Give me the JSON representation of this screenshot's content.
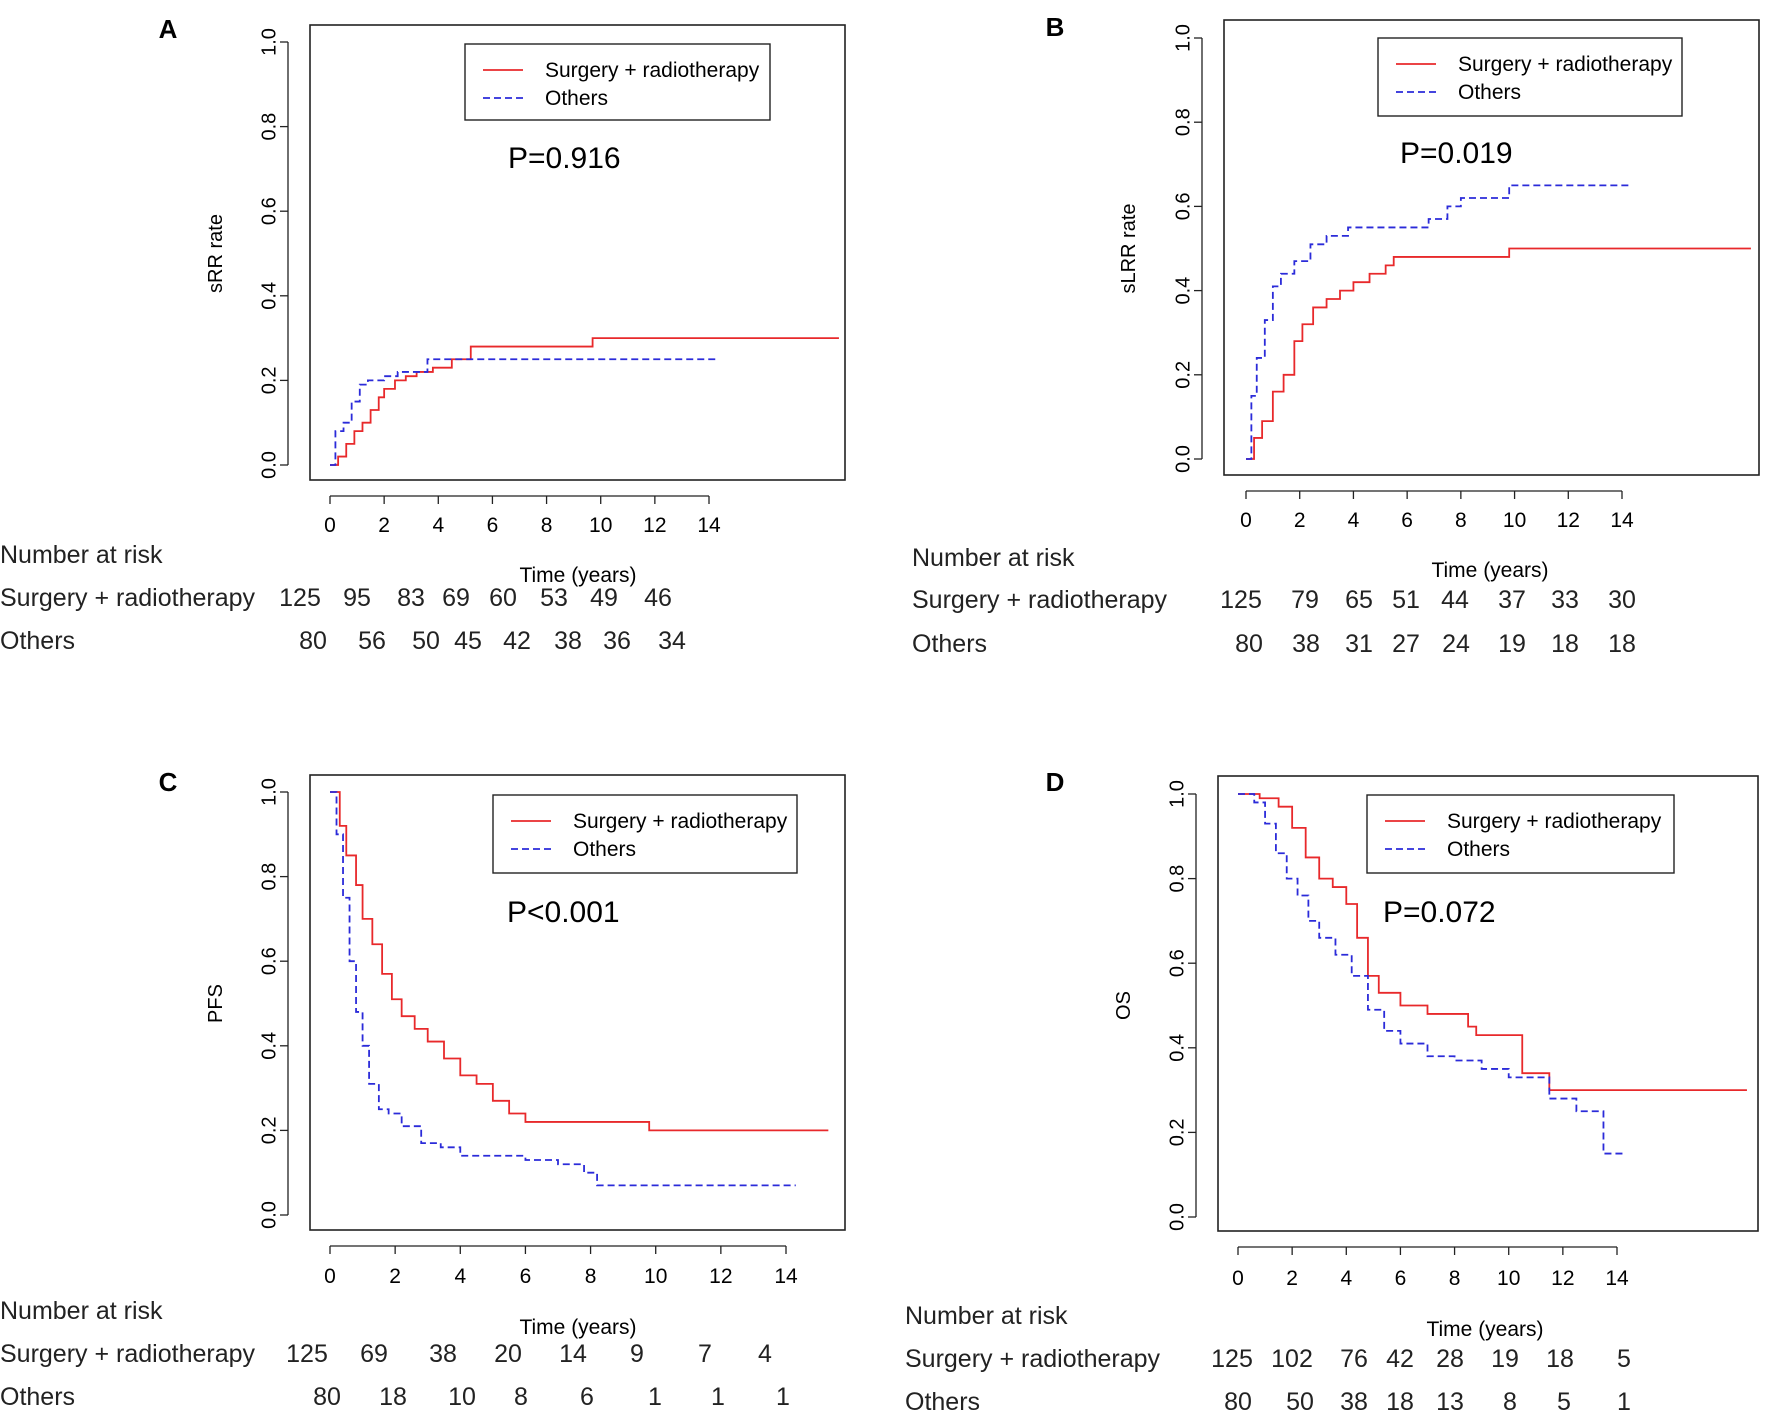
{
  "series_names": {
    "treated": "Surgery + radiotherapy",
    "others": "Others"
  },
  "colors": {
    "treated": "#e8292b",
    "others": "#2b2bd9",
    "axis": "#222222",
    "frame": "#222222"
  },
  "risk_table_title": "Number at risk",
  "chart_data": [
    {
      "panel": "A",
      "type": "line",
      "ylabel": "sRR rate",
      "xlabel": "Time (years)",
      "pvalue": "P=0.916",
      "ylim": [
        0,
        1
      ],
      "xlim": [
        0,
        14
      ],
      "yticks": [
        "0.0",
        "0.2",
        "0.4",
        "0.6",
        "0.8",
        "1.0"
      ],
      "xticks": [
        "0",
        "2",
        "4",
        "6",
        "8",
        "10",
        "12",
        "14"
      ],
      "legend_position": "top-right",
      "series": [
        {
          "name": "Surgery + radiotherapy",
          "style": "solid",
          "x": [
            0,
            0.3,
            0.6,
            0.9,
            1.2,
            1.5,
            1.8,
            2.0,
            2.4,
            2.8,
            3.2,
            3.8,
            4.5,
            5.2,
            6.5,
            9.7,
            12,
            14,
            18.8
          ],
          "y": [
            0,
            0.02,
            0.05,
            0.08,
            0.1,
            0.13,
            0.16,
            0.18,
            0.2,
            0.21,
            0.22,
            0.23,
            0.25,
            0.28,
            0.28,
            0.3,
            0.3,
            0.3,
            0.3
          ]
        },
        {
          "name": "Others",
          "style": "dashed",
          "x": [
            0,
            0.2,
            0.5,
            0.8,
            1.1,
            1.4,
            2.0,
            2.5,
            3.0,
            3.6,
            4.5,
            5.5,
            8,
            10,
            14.3
          ],
          "y": [
            0,
            0.08,
            0.1,
            0.15,
            0.19,
            0.2,
            0.21,
            0.22,
            0.22,
            0.25,
            0.25,
            0.25,
            0.25,
            0.25,
            0.25
          ]
        }
      ],
      "risk": {
        "Surgery + radiotherapy": [
          "125",
          "95",
          "83",
          "69",
          "60",
          "53",
          "49",
          "46"
        ],
        "Others": [
          "80",
          "56",
          "50",
          "45",
          "42",
          "38",
          "36",
          "34"
        ]
      }
    },
    {
      "panel": "B",
      "type": "line",
      "ylabel": "sLRR rate",
      "xlabel": "Time (years)",
      "pvalue": "P=0.019",
      "ylim": [
        0,
        1
      ],
      "xlim": [
        0,
        14
      ],
      "yticks": [
        "0.0",
        "0.2",
        "0.4",
        "0.6",
        "0.8",
        "1.0"
      ],
      "xticks": [
        "0",
        "2",
        "4",
        "6",
        "8",
        "10",
        "12",
        "14"
      ],
      "legend_position": "top-right",
      "series": [
        {
          "name": "Surgery + radiotherapy",
          "style": "solid",
          "x": [
            0,
            0.3,
            0.6,
            1.0,
            1.4,
            1.8,
            2.1,
            2.5,
            3.0,
            3.5,
            4.0,
            4.6,
            5.2,
            5.5,
            7.5,
            9.8,
            12,
            14,
            18.8
          ],
          "y": [
            0,
            0.05,
            0.09,
            0.16,
            0.2,
            0.28,
            0.32,
            0.36,
            0.38,
            0.4,
            0.42,
            0.44,
            0.46,
            0.48,
            0.48,
            0.5,
            0.5,
            0.5,
            0.5
          ]
        },
        {
          "name": "Others",
          "style": "dashed",
          "x": [
            0,
            0.2,
            0.4,
            0.7,
            1.0,
            1.3,
            1.8,
            2.4,
            3.0,
            3.8,
            5.0,
            6.8,
            7.5,
            8.0,
            9.0,
            9.8,
            12,
            14.3
          ],
          "y": [
            0,
            0.15,
            0.24,
            0.33,
            0.41,
            0.44,
            0.47,
            0.51,
            0.53,
            0.55,
            0.55,
            0.57,
            0.6,
            0.62,
            0.62,
            0.65,
            0.65,
            0.65
          ]
        }
      ],
      "risk": {
        "Surgery + radiotherapy": [
          "125",
          "79",
          "65",
          "51",
          "44",
          "37",
          "33",
          "30"
        ],
        "Others": [
          "80",
          "38",
          "31",
          "27",
          "24",
          "19",
          "18",
          "18"
        ]
      }
    },
    {
      "panel": "C",
      "type": "line",
      "ylabel": "PFS",
      "xlabel": "Time (years)",
      "pvalue": "P<0.001",
      "ylim": [
        0,
        1
      ],
      "xlim": [
        0,
        14
      ],
      "yticks": [
        "0.0",
        "0.2",
        "0.4",
        "0.6",
        "0.8",
        "1.0"
      ],
      "xticks": [
        "0",
        "2",
        "4",
        "6",
        "8",
        "10",
        "12",
        "14"
      ],
      "legend_position": "top-right",
      "series": [
        {
          "name": "Surgery + radiotherapy",
          "style": "solid",
          "x": [
            0,
            0.3,
            0.5,
            0.8,
            1.0,
            1.3,
            1.6,
            1.9,
            2.2,
            2.6,
            3.0,
            3.5,
            4.0,
            4.5,
            5.0,
            5.5,
            6.0,
            7.0,
            9.8,
            12,
            15.3
          ],
          "y": [
            1,
            0.92,
            0.85,
            0.78,
            0.7,
            0.64,
            0.57,
            0.51,
            0.47,
            0.44,
            0.41,
            0.37,
            0.33,
            0.31,
            0.27,
            0.24,
            0.22,
            0.22,
            0.2,
            0.2,
            0.2
          ]
        },
        {
          "name": "Others",
          "style": "dashed",
          "x": [
            0,
            0.2,
            0.4,
            0.6,
            0.8,
            1.0,
            1.2,
            1.5,
            1.8,
            2.2,
            2.8,
            3.4,
            4.0,
            5.0,
            6.0,
            7.0,
            7.8,
            8.2,
            10,
            12,
            14.3
          ],
          "y": [
            1,
            0.9,
            0.75,
            0.6,
            0.48,
            0.4,
            0.31,
            0.25,
            0.24,
            0.21,
            0.17,
            0.16,
            0.14,
            0.14,
            0.13,
            0.12,
            0.1,
            0.07,
            0.07,
            0.07,
            0.07
          ]
        }
      ],
      "risk": {
        "Surgery + radiotherapy": [
          "125",
          "69",
          "38",
          "20",
          "14",
          "9",
          "7",
          "4"
        ],
        "Others": [
          "80",
          "18",
          "10",
          "8",
          "6",
          "1",
          "1",
          "1"
        ]
      }
    },
    {
      "panel": "D",
      "type": "line",
      "ylabel": "OS",
      "xlabel": "Time (years)",
      "pvalue": "P=0.072",
      "ylim": [
        0,
        1
      ],
      "xlim": [
        0,
        14
      ],
      "yticks": [
        "0.0",
        "0.2",
        "0.4",
        "0.6",
        "0.8",
        "1.0"
      ],
      "xticks": [
        "0",
        "2",
        "4",
        "6",
        "8",
        "10",
        "12",
        "14"
      ],
      "legend_position": "top-right",
      "series": [
        {
          "name": "Surgery + radiotherapy",
          "style": "solid",
          "x": [
            0,
            0.8,
            1.5,
            2.0,
            2.5,
            3.0,
            3.5,
            4.0,
            4.4,
            4.8,
            5.2,
            6.0,
            7.0,
            8.5,
            8.8,
            10.0,
            10.5,
            11.5,
            12,
            14,
            18.8
          ],
          "y": [
            1,
            0.99,
            0.97,
            0.92,
            0.85,
            0.8,
            0.78,
            0.74,
            0.66,
            0.57,
            0.53,
            0.5,
            0.48,
            0.45,
            0.43,
            0.43,
            0.34,
            0.3,
            0.3,
            0.3,
            0.3
          ]
        },
        {
          "name": "Others",
          "style": "dashed",
          "x": [
            0,
            0.6,
            1.0,
            1.4,
            1.8,
            2.2,
            2.6,
            3.0,
            3.6,
            4.2,
            4.8,
            5.4,
            6.0,
            7.0,
            8.0,
            9.0,
            10.0,
            11.0,
            11.5,
            12.5,
            13.5,
            14.3
          ],
          "y": [
            1,
            0.98,
            0.93,
            0.86,
            0.8,
            0.76,
            0.7,
            0.66,
            0.62,
            0.57,
            0.49,
            0.44,
            0.41,
            0.38,
            0.37,
            0.35,
            0.33,
            0.33,
            0.28,
            0.25,
            0.15,
            0.15
          ]
        }
      ],
      "risk": {
        "Surgery + radiotherapy": [
          "125",
          "102",
          "76",
          "42",
          "28",
          "19",
          "18",
          "5"
        ],
        "Others": [
          "80",
          "50",
          "38",
          "18",
          "13",
          "8",
          "5",
          "1"
        ]
      }
    }
  ]
}
